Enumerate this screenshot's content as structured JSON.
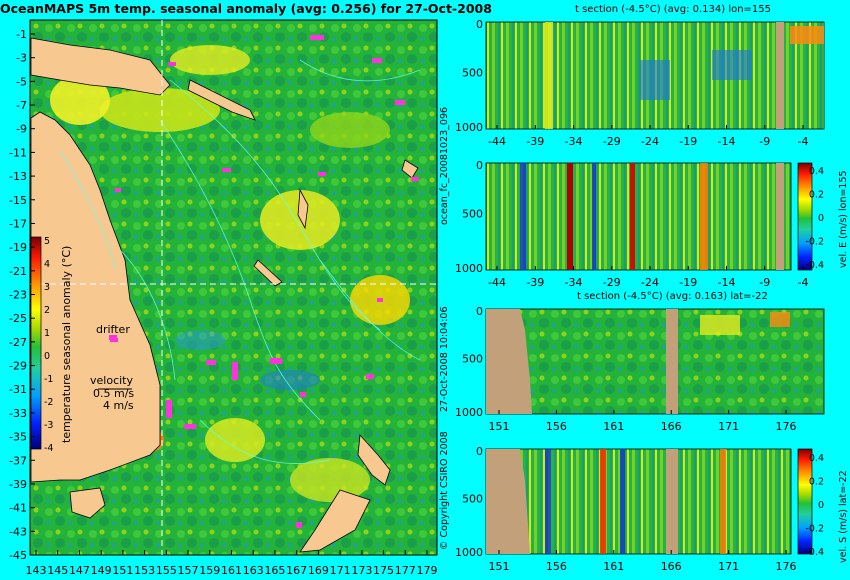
{
  "chart_data": [
    {
      "type": "heatmap",
      "title": "OceanMAPS 5m temp. seasonal anomaly (avg: 0.256) for 27-Oct-2008",
      "x_ticks": [
        "143",
        "145",
        "147",
        "149",
        "151",
        "153",
        "155",
        "157",
        "159",
        "161",
        "163",
        "165",
        "167",
        "169",
        "171",
        "173",
        "175",
        "177",
        "179"
      ],
      "y_ticks": [
        "-1",
        "-3",
        "-5",
        "-7",
        "-9",
        "-11",
        "-13",
        "-15",
        "-17",
        "-19",
        "-21",
        "-23",
        "-25",
        "-27",
        "-29",
        "-31",
        "-33",
        "-35",
        "-37",
        "-39",
        "-41",
        "-43",
        "-45"
      ],
      "xlim": [
        143,
        180
      ],
      "ylim": [
        -45,
        0
      ],
      "colorbar": {
        "label": "temperature seasonal anomaly (°C)",
        "ticks": [
          "5",
          "4",
          "3",
          "2",
          "1",
          "0",
          "-1",
          "-2",
          "-3",
          "-4"
        ],
        "range": [
          -4,
          5
        ]
      },
      "annotations": [
        "drifter",
        "velocity",
        "0.5 m/s",
        "4 m/s"
      ],
      "crosshair": {
        "lon": 155,
        "lat": -22
      }
    },
    {
      "type": "heatmap",
      "title": "t section (-4.5°C) (avg: 0.134) lon=155",
      "x_ticks": [
        "-44",
        "-39",
        "-34",
        "-29",
        "-24",
        "-19",
        "-14",
        "-9",
        "-4"
      ],
      "y_ticks": [
        "0",
        "500",
        "1000"
      ],
      "ylabel": "ocean_fc_20081023_096"
    },
    {
      "type": "heatmap",
      "title": "",
      "x_ticks": [
        "-44",
        "-39",
        "-34",
        "-29",
        "-24",
        "-19",
        "-14",
        "-9",
        "-4"
      ],
      "y_ticks": [
        "0",
        "500",
        "1000"
      ],
      "colorbar": {
        "label": "vel. E (m/s) lon=155",
        "ticks": [
          "0.4",
          "0.2",
          "0",
          "-0.2",
          "-0.4"
        ],
        "range": [
          -0.4,
          0.4
        ]
      }
    },
    {
      "type": "heatmap",
      "title": "t section (-4.5°C) (avg: 0.163) lat=-22",
      "x_ticks": [
        "151",
        "156",
        "161",
        "166",
        "171",
        "176"
      ],
      "y_ticks": [
        "0",
        "500",
        "1000"
      ],
      "ylabel": "27-Oct-2008 10:04:06"
    },
    {
      "type": "heatmap",
      "title": "",
      "x_ticks": [
        "151",
        "156",
        "161",
        "166",
        "171",
        "176"
      ],
      "y_ticks": [
        "0",
        "500",
        "1000"
      ],
      "ylabel": "© Copyright CSIRO 2008",
      "colorbar": {
        "label": "vel. S (m/s) lat=-22",
        "ticks": [
          "0.4",
          "0.2",
          "0",
          "-0.2",
          "-0.4"
        ],
        "range": [
          -0.4,
          0.4
        ]
      }
    }
  ]
}
